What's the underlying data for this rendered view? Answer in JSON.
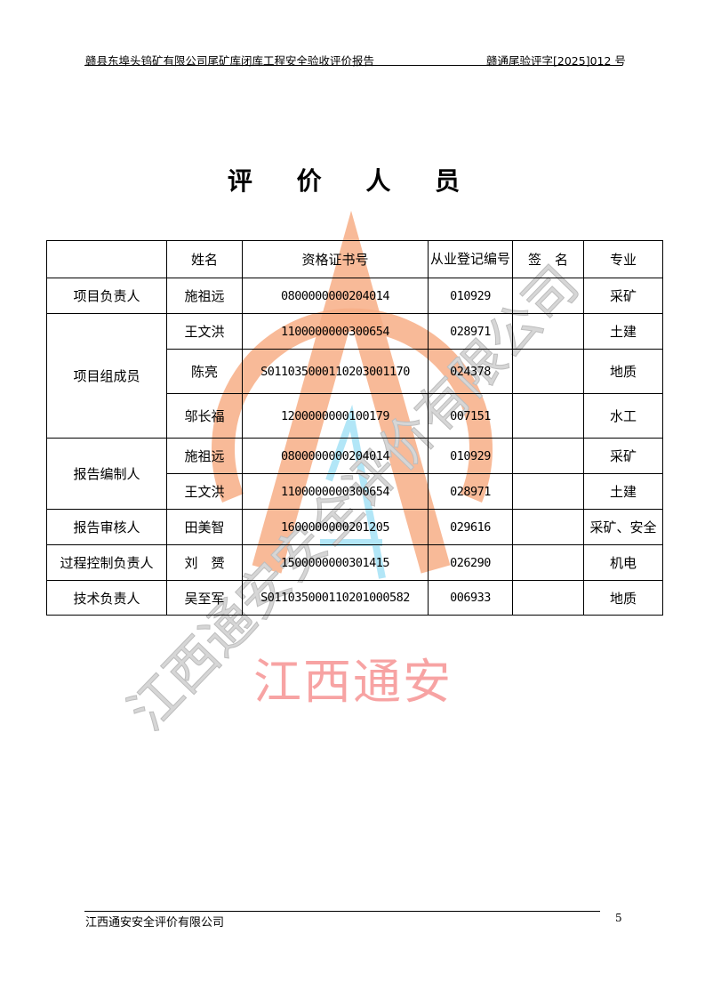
{
  "header": {
    "left": "赣县东埠头钨矿有限公司尾矿库闭库工程安全验收评价报告",
    "right": "赣通尾验评字[2025]012 号"
  },
  "title": "评 价 人 员",
  "table": {
    "headers": [
      "",
      "姓名",
      "资格证书号",
      "从业登记编号",
      "签　名",
      "专业"
    ],
    "groups": [
      {
        "role": "项目负责人",
        "rows": [
          [
            "施祖远",
            "0800000000204014",
            "010929",
            "",
            "采矿"
          ]
        ]
      },
      {
        "role": "项目组成员",
        "rows": [
          [
            "王文洪",
            "1100000000300654",
            "028971",
            "",
            "土建"
          ],
          [
            "陈亮",
            "S011035000110203001170",
            "024378",
            "",
            "地质"
          ],
          [
            "邬长福",
            "1200000000100179",
            "007151",
            "",
            "水工"
          ]
        ]
      },
      {
        "role": "报告编制人",
        "rows": [
          [
            "施祖远",
            "0800000000204014",
            "010929",
            "",
            "采矿"
          ],
          [
            "王文洪",
            "1100000000300654",
            "028971",
            "",
            "土建"
          ]
        ]
      },
      {
        "role": "报告审核人",
        "rows": [
          [
            "田美智",
            "1600000000201205",
            "029616",
            "",
            "采矿、安全"
          ]
        ]
      },
      {
        "role": "过程控制负责人",
        "rows": [
          [
            "刘　赟",
            "1500000000301415",
            "026290",
            "",
            "机电"
          ]
        ]
      },
      {
        "role": "技术负责人",
        "rows": [
          [
            "吴至军",
            "S011035000110201000582",
            "006933",
            "",
            "地质"
          ]
        ]
      }
    ]
  },
  "watermark": {
    "company": "江西通安安全评价有限公司",
    "short": "江西通安",
    "ring_color": "#f7ae86",
    "text_color": "#f7a3a3"
  },
  "footer": {
    "company": "江西通安安全评价有限公司",
    "page": "5"
  }
}
